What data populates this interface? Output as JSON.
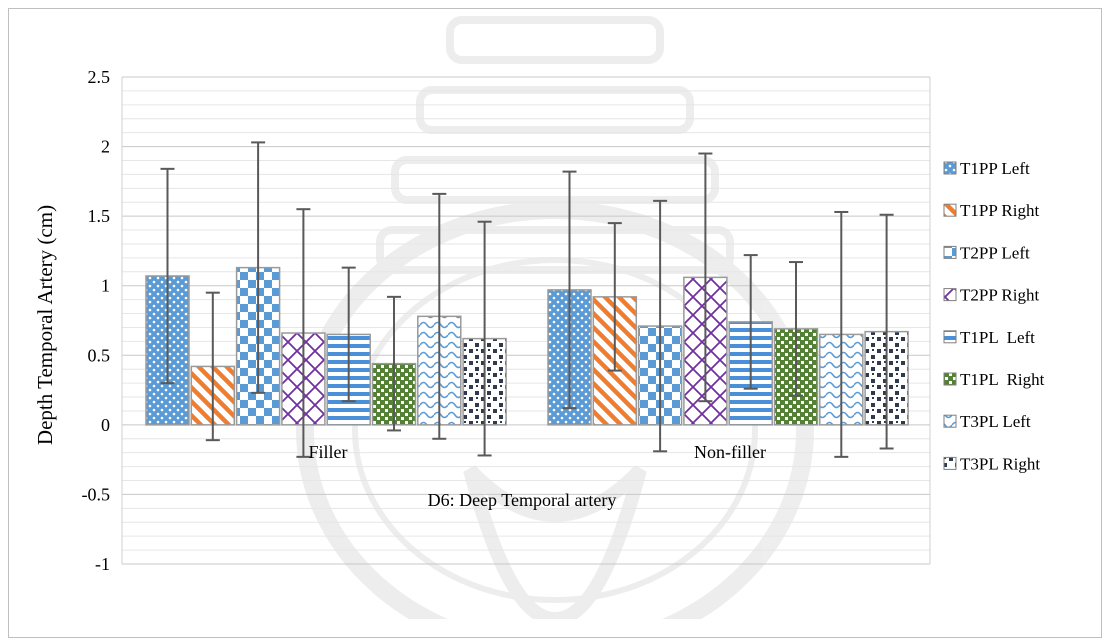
{
  "chart_data": {
    "type": "bar",
    "title": "",
    "xlabel": "",
    "ylabel": "Depth Temporal Artery (cm)",
    "annotation": "D6: Deep Temporal artery",
    "ylim": [
      -1,
      2.5
    ],
    "yticks": [
      "-1",
      "-0.5",
      "0",
      "0.5",
      "1",
      "1.5",
      "2",
      "2.5"
    ],
    "categories": [
      "Filler",
      "Non-filler"
    ],
    "grid": true,
    "legend_position": "right",
    "error_bars": true,
    "series": [
      {
        "name": "T1PP Left",
        "color": "#5b9bd5",
        "pattern": "dots",
        "values": [
          1.07,
          0.97
        ],
        "error": [
          0.77,
          0.85
        ]
      },
      {
        "name": "T1PP Right",
        "color": "#ed7d31",
        "pattern": "diagonal-down",
        "values": [
          0.42,
          0.92
        ],
        "error": [
          0.53,
          0.53
        ]
      },
      {
        "name": "T2PP Left",
        "color": "#5b9bd5",
        "pattern": "checker",
        "values": [
          1.13,
          0.71
        ],
        "error": [
          0.9,
          0.9
        ]
      },
      {
        "name": "T2PP Right",
        "color": "#7030a0",
        "pattern": "diagonal-cross",
        "values": [
          0.66,
          1.06
        ],
        "error": [
          0.89,
          0.89
        ]
      },
      {
        "name": "T1PL  Left",
        "color": "#4a90d9",
        "pattern": "horizontal",
        "values": [
          0.65,
          0.74
        ],
        "error": [
          0.48,
          0.48
        ]
      },
      {
        "name": "T1PL  Right",
        "color": "#548235",
        "pattern": "grid-dots",
        "values": [
          0.44,
          0.69
        ],
        "error": [
          0.48,
          0.48
        ]
      },
      {
        "name": "T3PL Left",
        "color": "#5b9bd5",
        "pattern": "wave",
        "values": [
          0.78,
          0.65
        ],
        "error": [
          0.88,
          0.88
        ]
      },
      {
        "name": "T3PL Right",
        "color": "#2f3b4c",
        "pattern": "confetti",
        "values": [
          0.62,
          0.67
        ],
        "error": [
          0.84,
          0.84
        ]
      }
    ]
  }
}
